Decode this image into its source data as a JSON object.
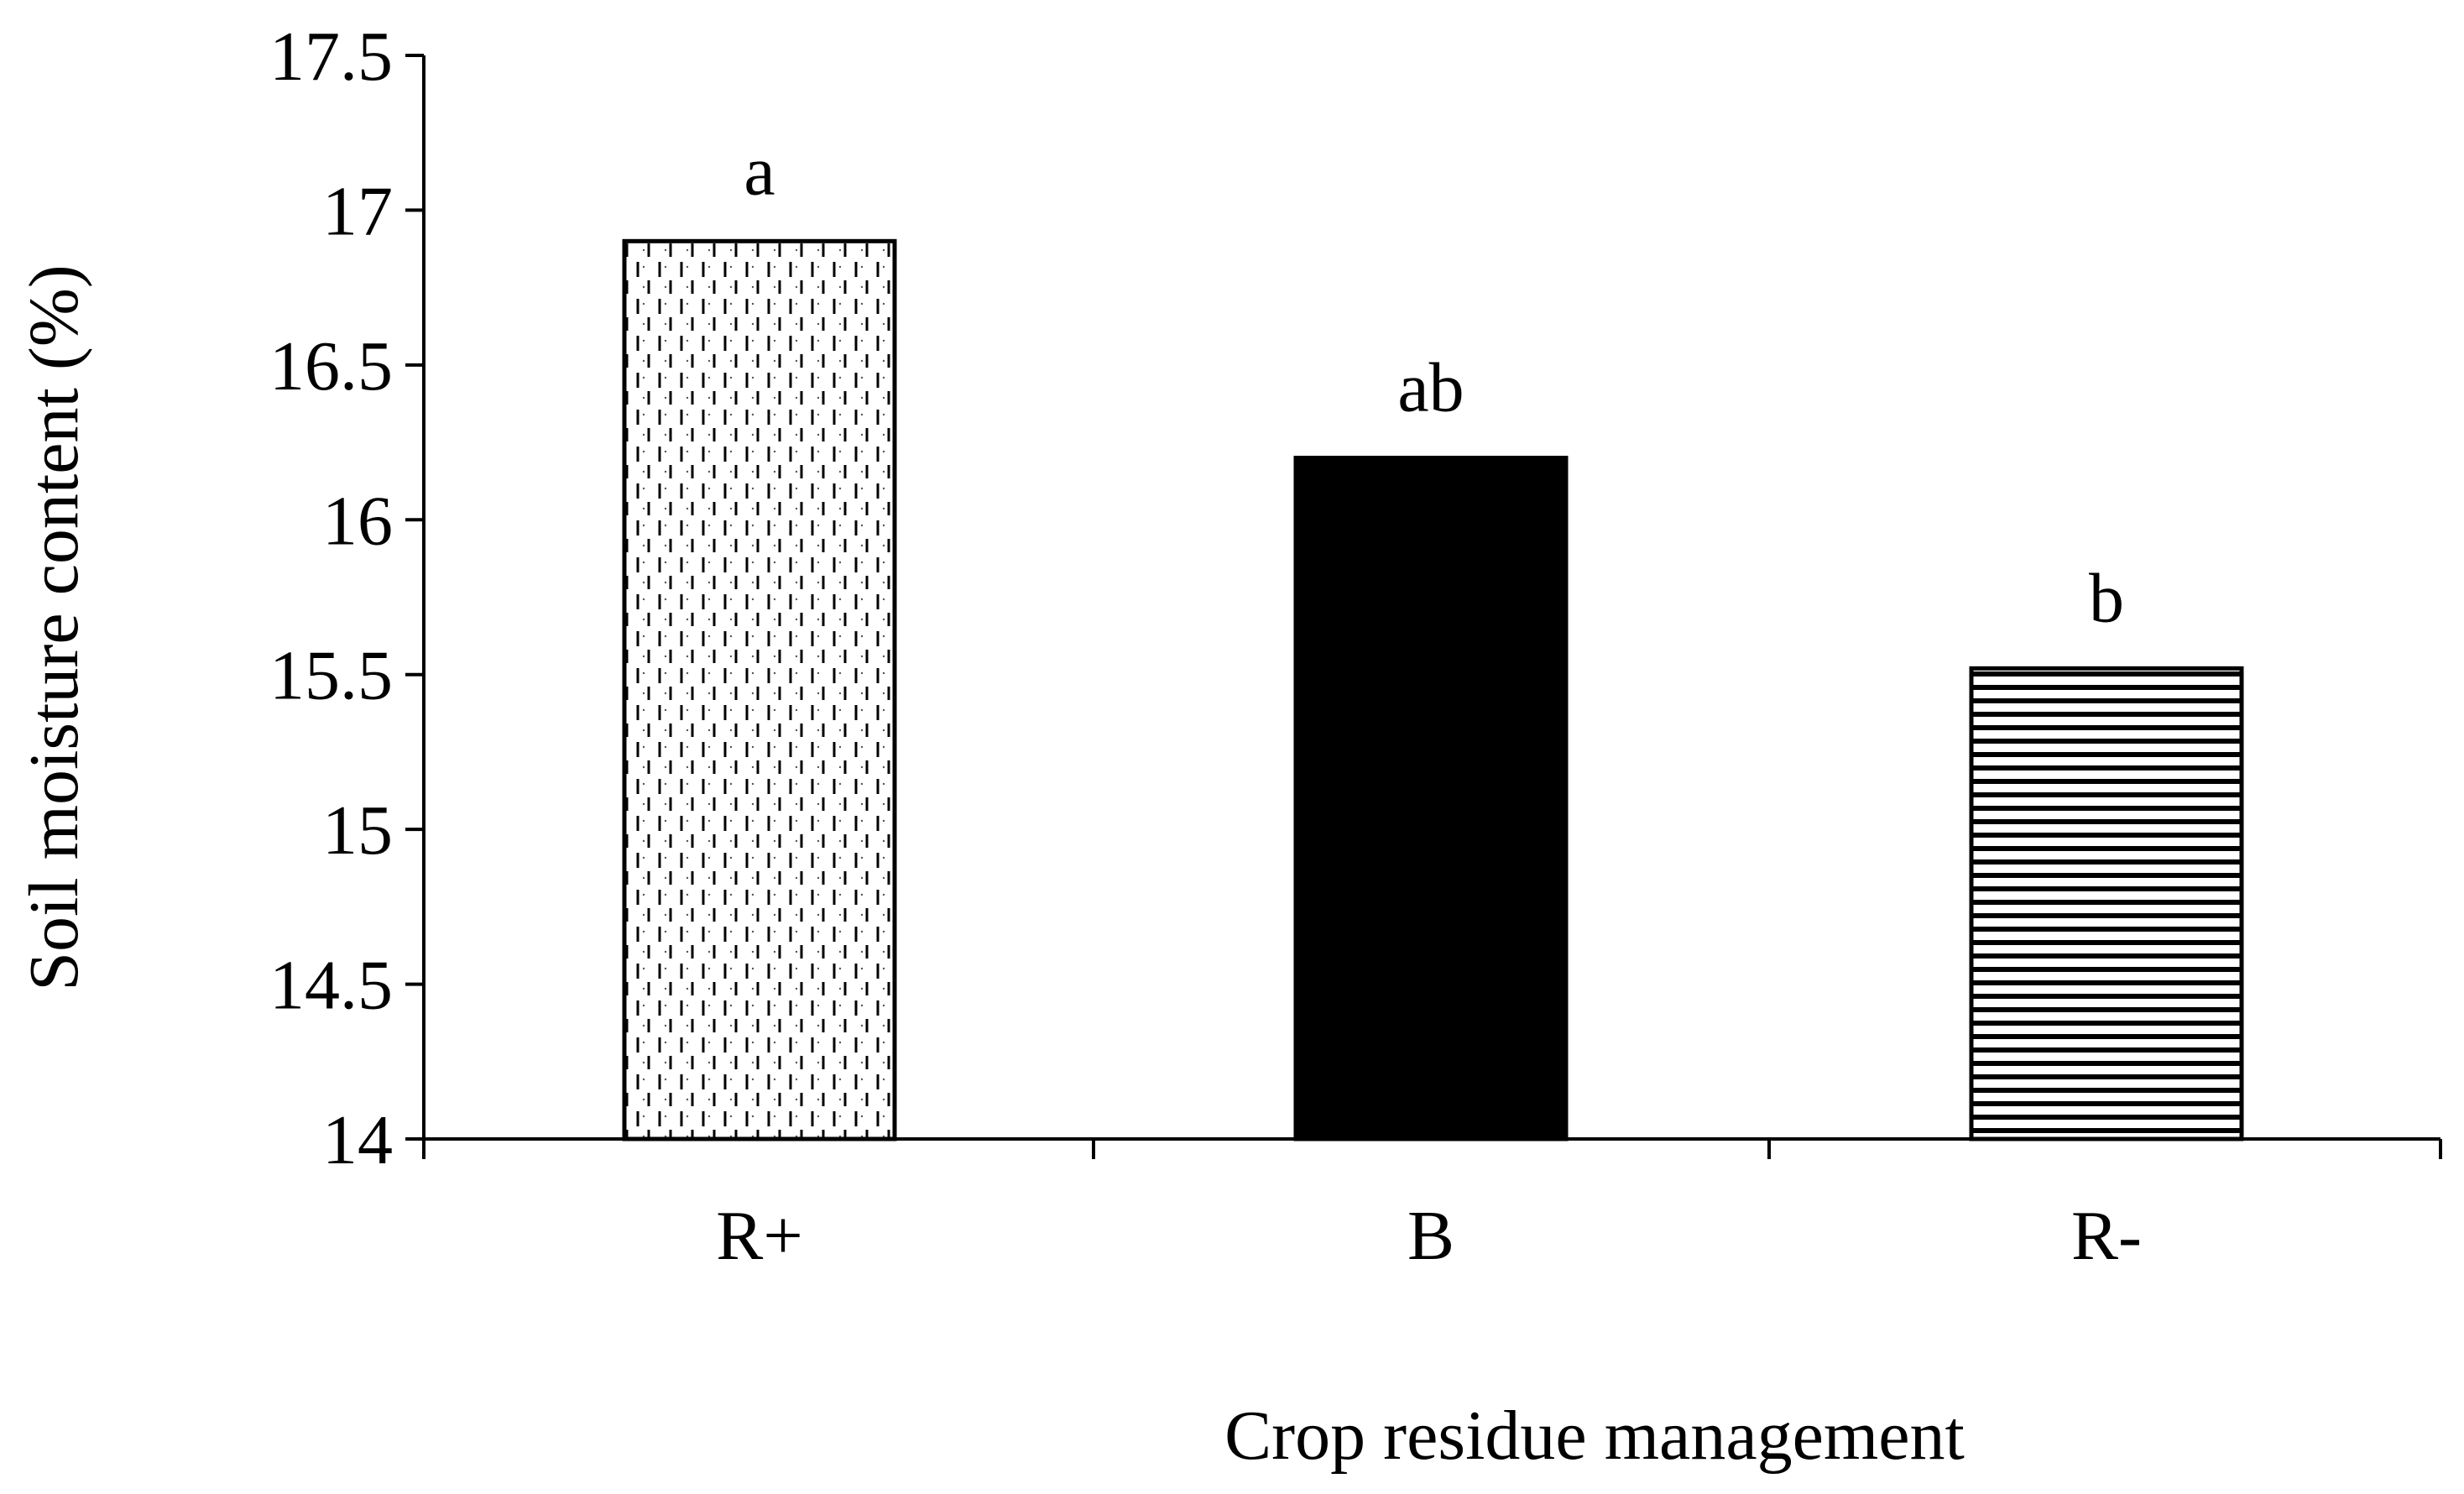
{
  "chart_data": {
    "type": "bar",
    "title": "",
    "xlabel": "Crop residue management",
    "ylabel": "Soil moisture content (%)",
    "categories": [
      "R+",
      "B",
      "R-"
    ],
    "values": [
      16.9,
      16.2,
      15.52
    ],
    "significance_letters": [
      "a",
      "ab",
      "b"
    ],
    "ylim": [
      14,
      17.5
    ],
    "yticks": [
      "14",
      "14.5",
      "15",
      "15.5",
      "16",
      "16.5",
      "17",
      "17.5"
    ],
    "ytick_values": [
      14,
      14.5,
      15,
      15.5,
      16,
      16.5,
      17,
      17.5
    ],
    "grid": false,
    "legend": "none",
    "bar_fills": [
      "dashed-vertical-pattern",
      "solid-black",
      "horizontal-stripes-pattern"
    ],
    "colors": {
      "axis": "#000000",
      "bar_outline": "#000000",
      "solid_bar": "#000000",
      "pattern_background": "#ffffff"
    }
  }
}
